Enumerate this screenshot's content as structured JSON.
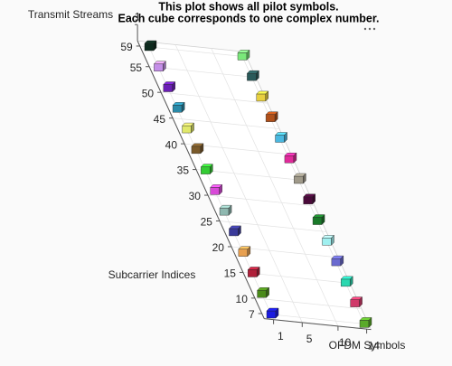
{
  "chart_data": {
    "type": "scatter3d",
    "title": [
      "This plot shows all pilot symbols.",
      "Each cube corresponds to one complex number."
    ],
    "xlabel": "OFDM Symbols",
    "ylabel": "Subcarrier Indices",
    "zlabel": "Transmit Streams",
    "xlim": [
      1,
      14
    ],
    "ylim": [
      7,
      59
    ],
    "xticks": [
      1,
      5,
      10,
      14
    ],
    "yticks": [
      7,
      10,
      15,
      20,
      25,
      30,
      35,
      40,
      45,
      50,
      55,
      59
    ],
    "zticks": [
      1
    ],
    "grid": true,
    "x": [
      1,
      1,
      1,
      1,
      1,
      1,
      1,
      1,
      1,
      1,
      1,
      1,
      1,
      1,
      14,
      14,
      14,
      14,
      14,
      14,
      14,
      14,
      14,
      14,
      14,
      14,
      14,
      14
    ],
    "y": [
      59,
      55,
      51,
      47,
      43,
      39,
      35,
      31,
      27,
      23,
      19,
      15,
      11,
      7,
      59,
      55,
      51,
      47,
      43,
      39,
      35,
      31,
      27,
      23,
      19,
      15,
      11,
      7
    ],
    "colors": [
      "#0d2b1e",
      "#c48ee8",
      "#6b1fb5",
      "#2a8aa8",
      "#e0e86a",
      "#7a5a2a",
      "#33cc33",
      "#d84ad8",
      "#8fb8b0",
      "#3a3a9a",
      "#e8a050",
      "#b0203a",
      "#4a8a1a",
      "#1a1ae0",
      "#7ae87a",
      "#2a5a5a",
      "#e8d040",
      "#b0501a",
      "#4ab8e0",
      "#e02a9a",
      "#a09a8a",
      "#4a0a3a",
      "#1a7a2a",
      "#a0f0f0",
      "#6a6ad0",
      "#2ad8b0",
      "#d03a6a",
      "#5aaa2a"
    ]
  }
}
